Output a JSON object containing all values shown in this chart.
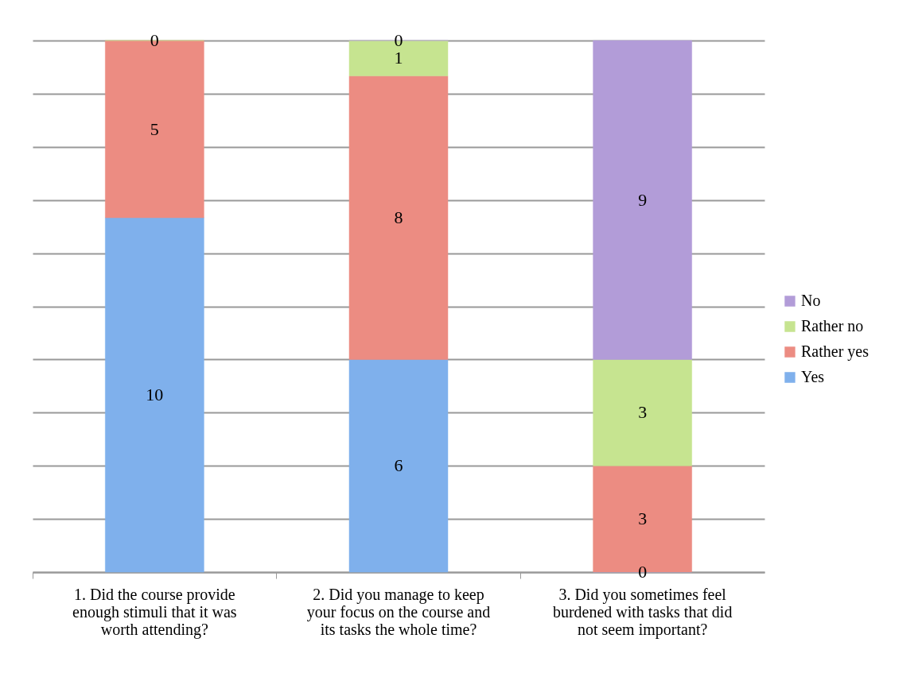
{
  "chart_data": {
    "type": "bar",
    "stacked": true,
    "data_labels": true,
    "legend": "right",
    "grid": "y",
    "tick_labels": "x",
    "categories": [
      "1. Did the course provide enough stimuli that it was worth attending?",
      "2. Did you manage to keep your focus on the course and its tasks the whole time?",
      "3. Did you sometimes feel burdened with tasks that did not seem important?"
    ],
    "ylim": [
      0,
      15
    ],
    "yticks": [
      {
        "value": 0,
        "label": null
      },
      {
        "value": 1.5,
        "label": null
      },
      {
        "value": 3,
        "label": null
      },
      {
        "value": 4.5,
        "label": null
      },
      {
        "value": 6,
        "label": null
      },
      {
        "value": 7.5,
        "label": null
      },
      {
        "value": 9,
        "label": null
      },
      {
        "value": 10.5,
        "label": null
      },
      {
        "value": 12,
        "label": null
      },
      {
        "value": 13.5,
        "label": null
      },
      {
        "value": 15,
        "label": null
      }
    ],
    "series": [
      {
        "name": "Yes",
        "color": "#7fb0ec",
        "values": [
          10,
          6,
          0
        ]
      },
      {
        "name": "Rather yes",
        "color": "#ec8c82",
        "values": [
          5,
          8,
          3
        ]
      },
      {
        "name": "Rather no",
        "color": "#c6e490",
        "values": [
          0,
          1,
          3
        ]
      },
      {
        "name": "No",
        "color": "#b29cd8",
        "values": [
          null,
          0,
          9
        ]
      }
    ]
  }
}
